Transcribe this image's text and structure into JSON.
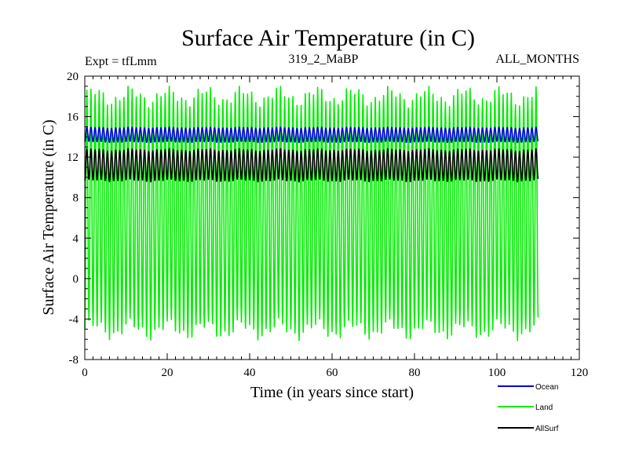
{
  "chart_data": {
    "type": "line",
    "title": "Surface Air Temperature (in C)",
    "subtitle_left": "Expt = tfLmm",
    "subtitle_center": "319_2_MaBP",
    "subtitle_right": "ALL_MONTHS",
    "xlabel": "Time (in years since start)",
    "ylabel": "Surface Air Temperature (in C)",
    "xlim": [
      0,
      120
    ],
    "ylim": [
      -8,
      20
    ],
    "xticks": [
      0,
      20,
      40,
      60,
      80,
      100,
      120
    ],
    "yticks": [
      -8,
      -4,
      0,
      4,
      8,
      12,
      16,
      20
    ],
    "x_range_data": [
      0,
      110
    ],
    "legend_position": "bottom-right",
    "series": [
      {
        "name": "Land",
        "color": "#00ee00",
        "mean": 6.5,
        "amplitude": 11.5,
        "min": -6.2,
        "max": 19.0
      },
      {
        "name": "AllSurf",
        "color": "#000000",
        "mean": 11.2,
        "amplitude": 1.5,
        "min": 9.5,
        "max": 13.2
      },
      {
        "name": "Ocean",
        "color": "#0000dd",
        "mean": 14.2,
        "amplitude": 0.7,
        "min": 13.4,
        "max": 15.2
      }
    ],
    "legend": [
      {
        "name": "Ocean",
        "color": "#0000dd"
      },
      {
        "name": "Land",
        "color": "#00ee00"
      },
      {
        "name": "AllSurf",
        "color": "#000000"
      }
    ]
  }
}
